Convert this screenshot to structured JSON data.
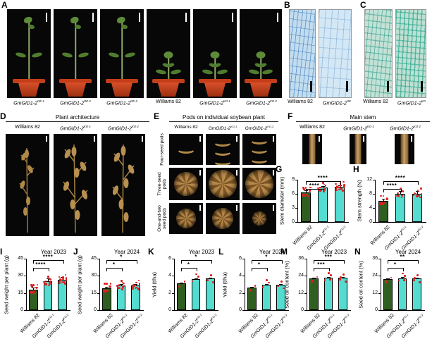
{
  "colors": {
    "wt_bar": "#2f5f20",
    "ko_bar": "#55dcd0",
    "dot_red": "#e01f1f",
    "pot_clay": "#c2401c",
    "stain_blue": "#c2ddef",
    "stain_teal": "#c3e1d5"
  },
  "panels": {
    "A": {
      "label": "A",
      "captions": [
        "GmGID1-2^OE-1",
        "GmGID1-2^OE-2",
        "GmGID1-2^OE-3",
        "Williams 82",
        "GmGID1-2^KO-1",
        "GmGID1-2^KO-2"
      ]
    },
    "B": {
      "label": "B",
      "captions": [
        "Williams 82",
        "GmGID1-2^OE"
      ]
    },
    "C": {
      "label": "C",
      "captions": [
        "Williams 82",
        "GmGID1-2^KO"
      ]
    },
    "D": {
      "label": "D",
      "title": "Plant architecture",
      "columns": [
        "Williams 82",
        "GmGID1-2^KO-1",
        "GmGID1-2^KO-2"
      ]
    },
    "E": {
      "label": "E",
      "title": "Pods on individual soybean plant",
      "columns": [
        "Williams 82",
        "GmGID1-2^KO-1",
        "GmGID1-2^KO-2"
      ],
      "rows": [
        "Four-seed pods",
        "Three-seed pods",
        "One-and-two seed pods"
      ]
    },
    "F": {
      "label": "F",
      "title": "Main stem",
      "columns": [
        "Williams 82",
        "GmGID1-2^KO-1",
        "GmGID1-2^KO-2"
      ]
    }
  },
  "chart_data": [
    {
      "id": "G",
      "panel_label": "G",
      "type": "bar",
      "title": "",
      "ylabel": "Stem diameter (mm)",
      "ylim": [
        0,
        9
      ],
      "yticks": [
        0,
        3,
        6,
        9
      ],
      "categories": [
        "Williams 82",
        "GmGID1-2^KO-1",
        "GmGID1-2^KO-2"
      ],
      "values": [
        6.3,
        7.3,
        7.5
      ],
      "errors": [
        0.4,
        0.3,
        0.3
      ],
      "bar_colors": [
        "wt",
        "ko",
        "ko"
      ],
      "n_dots": 16,
      "significance": [
        {
          "pair": [
            0,
            1
          ],
          "label": "****",
          "row": 1
        },
        {
          "pair": [
            0,
            2
          ],
          "label": "****",
          "row": 0
        }
      ]
    },
    {
      "id": "H",
      "panel_label": "H",
      "type": "bar",
      "title": "",
      "ylabel": "Stem strength (N)",
      "ylim": [
        0,
        12
      ],
      "yticks": [
        0,
        4,
        8,
        12
      ],
      "categories": [
        "Williams 82",
        "GmGID1-2^KO-1",
        "GmGID1-2^KO-2"
      ],
      "values": [
        6.1,
        8.1,
        8.1
      ],
      "errors": [
        0.5,
        0.8,
        0.8
      ],
      "bar_colors": [
        "wt",
        "ko",
        "ko"
      ],
      "n_dots": 11,
      "significance": [
        {
          "pair": [
            0,
            1
          ],
          "label": "****",
          "row": 1
        },
        {
          "pair": [
            0,
            2
          ],
          "label": "****",
          "row": 0
        }
      ]
    },
    {
      "id": "I",
      "panel_label": "I",
      "type": "bar",
      "title": "Year 2023",
      "ylabel": "Seed weight per plant (g)",
      "ylim": [
        0,
        45
      ],
      "yticks": [
        0,
        15,
        30,
        45
      ],
      "categories": [
        "Williams 82",
        "GmGID1-2^KO-1",
        "GmGID1-2^KO-2"
      ],
      "values": [
        18,
        25,
        26.5
      ],
      "errors": [
        2,
        2.5,
        2.5
      ],
      "bar_colors": [
        "wt",
        "ko",
        "ko"
      ],
      "n_dots": 16,
      "significance": [
        {
          "pair": [
            0,
            1
          ],
          "label": "****",
          "row": 1
        },
        {
          "pair": [
            0,
            2
          ],
          "label": "****",
          "row": 0
        }
      ]
    },
    {
      "id": "J",
      "panel_label": "J",
      "type": "bar",
      "title": "Year 2024",
      "ylabel": "Seed weight per plant (g)",
      "ylim": [
        0,
        45
      ],
      "yticks": [
        0,
        15,
        30,
        45
      ],
      "categories": [
        "Williams 82",
        "GmGID1-2^KO-1",
        "GmGID1-2^KO-2"
      ],
      "values": [
        19,
        21.5,
        21.5
      ],
      "errors": [
        1.5,
        1.5,
        1.5
      ],
      "bar_colors": [
        "wt",
        "ko",
        "ko"
      ],
      "n_dots": 14,
      "significance": [
        {
          "pair": [
            0,
            1
          ],
          "label": "*",
          "row": 1
        },
        {
          "pair": [
            0,
            2
          ],
          "label": "*",
          "row": 0
        }
      ]
    },
    {
      "id": "K",
      "panel_label": "K",
      "type": "bar",
      "title": "Year 2023",
      "ylabel": "Yield (t/ha)",
      "ylim": [
        0,
        6
      ],
      "yticks": [
        0,
        2,
        4,
        6
      ],
      "categories": [
        "Williams 82",
        "GmGID1-2^KO-1",
        "GmGID1-2^KO-2"
      ],
      "values": [
        3.15,
        3.65,
        3.7
      ],
      "errors": [
        0.08,
        0.08,
        0.08
      ],
      "bar_colors": [
        "wt",
        "ko",
        "ko"
      ],
      "n_dots": 3,
      "significance": [
        {
          "pair": [
            0,
            1
          ],
          "label": "*",
          "row": 1
        },
        {
          "pair": [
            0,
            2
          ],
          "label": "*",
          "row": 0
        }
      ]
    },
    {
      "id": "L",
      "panel_label": "L",
      "type": "bar",
      "title": "Year 2024",
      "ylabel": "Yield (t/ha)",
      "ylim": [
        0,
        6
      ],
      "yticks": [
        0,
        2,
        4,
        6
      ],
      "categories": [
        "Williams 82",
        "GmGID1-2^KO-1",
        "GmGID1-2^KO-2"
      ],
      "values": [
        2.65,
        2.95,
        3.0
      ],
      "errors": [
        0.07,
        0.07,
        0.07
      ],
      "bar_colors": [
        "wt",
        "ko",
        "ko"
      ],
      "n_dots": 3,
      "significance": [
        {
          "pair": [
            0,
            1
          ],
          "label": "*",
          "row": 1
        },
        {
          "pair": [
            0,
            2
          ],
          "label": "*",
          "row": 0
        }
      ]
    },
    {
      "id": "M",
      "panel_label": "M",
      "type": "bar",
      "title": "Year 2023",
      "ylabel": "Seed oil content (%)",
      "ylim": [
        0,
        36
      ],
      "yticks": [
        0,
        12,
        24,
        36
      ],
      "categories": [
        "Williams 82",
        "GmGID1-2^KO-1",
        "GmGID1-2^KO-2"
      ],
      "values": [
        22.2,
        22.8,
        22.7
      ],
      "errors": [
        0.5,
        0.6,
        0.6
      ],
      "bar_colors": [
        "wt",
        "ko",
        "ko"
      ],
      "n_dots": 4,
      "significance": [
        {
          "pair": [
            0,
            1
          ],
          "label": "***",
          "row": 1
        },
        {
          "pair": [
            0,
            2
          ],
          "label": "***",
          "row": 0
        }
      ]
    },
    {
      "id": "N",
      "panel_label": "N",
      "type": "bar",
      "title": "Year 2024",
      "ylabel": "Seed oil content (%)",
      "ylim": [
        0,
        36
      ],
      "yticks": [
        0,
        12,
        24,
        36
      ],
      "categories": [
        "Williams 82",
        "GmGID1-2^KO-1",
        "GmGID1-2^KO-2"
      ],
      "values": [
        21.8,
        22.4,
        22.2
      ],
      "errors": [
        0.5,
        0.6,
        0.5
      ],
      "bar_colors": [
        "wt",
        "ko",
        "ko"
      ],
      "n_dots": 4,
      "significance": [
        {
          "pair": [
            0,
            1
          ],
          "label": "*",
          "row": 1
        },
        {
          "pair": [
            0,
            2
          ],
          "label": "**",
          "row": 0
        }
      ]
    }
  ]
}
